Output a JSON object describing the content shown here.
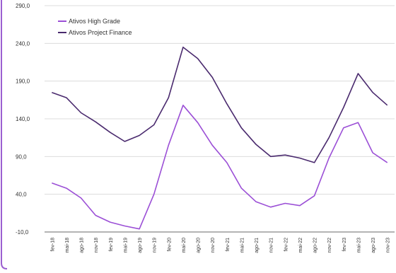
{
  "colors": {
    "frame": "#9b5fd0",
    "high_grade": "#9b4fd6",
    "project_finance": "#4a2a6e",
    "axis": "#6a6a6a",
    "grid": "#dcdcdc",
    "text": "#333333"
  },
  "chart_data": {
    "type": "line",
    "title": "",
    "xlabel": "",
    "ylabel": "",
    "ylim": [
      -10,
      290
    ],
    "yticks": [
      -10,
      40,
      90,
      140,
      190,
      240,
      290
    ],
    "ytick_labels": [
      "-10,0",
      "40,0",
      "90,0",
      "140,0",
      "190,0",
      "240,0",
      "290,0"
    ],
    "grid": "horizontal",
    "legend_position": "top-left",
    "categories": [
      "fev-18",
      "mai-18",
      "ago-18",
      "nov-18",
      "fev-19",
      "mai-19",
      "ago-19",
      "nov-19",
      "fev-20",
      "mai-20",
      "ago-20",
      "nov-20",
      "fev-21",
      "mai-21",
      "ago-21",
      "nov-21",
      "fev-22",
      "mai-22",
      "ago-22",
      "nov-22",
      "fev-23",
      "mai-23",
      "ago-23",
      "nov-23"
    ],
    "series": [
      {
        "name": "Ativos High Grade",
        "color": "#9b4fd6",
        "values": [
          55,
          48,
          35,
          12,
          3,
          -2,
          -6,
          40,
          105,
          158,
          135,
          105,
          82,
          48,
          30,
          23,
          28,
          25,
          38,
          88,
          128,
          135,
          95,
          82
        ]
      },
      {
        "name": "Ativos Project Finance",
        "color": "#4a2a6e",
        "values": [
          175,
          168,
          148,
          136,
          122,
          110,
          118,
          132,
          168,
          235,
          220,
          195,
          160,
          128,
          106,
          90,
          92,
          88,
          82,
          115,
          155,
          200,
          175,
          158
        ]
      }
    ]
  }
}
